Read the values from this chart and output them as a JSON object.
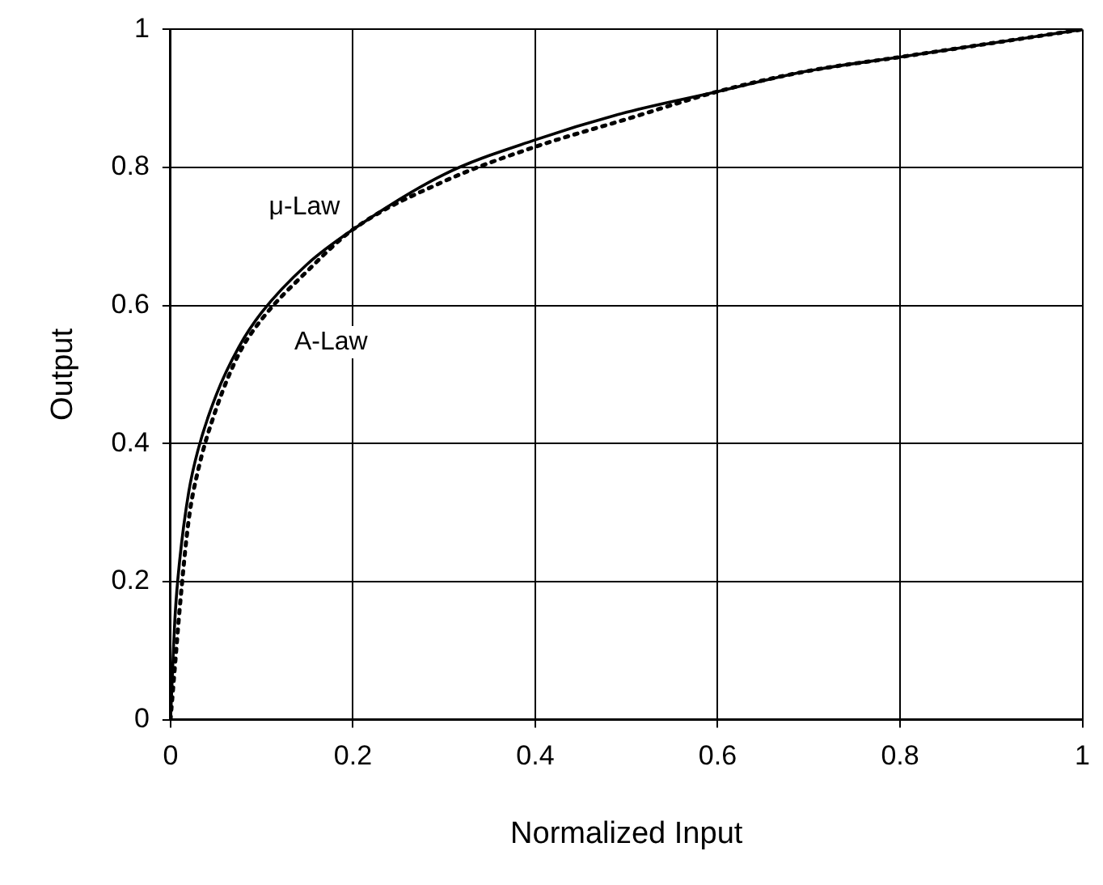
{
  "chart_data": {
    "type": "line",
    "xlabel": "Normalized Input",
    "ylabel": "Output",
    "x": [
      0,
      0.005,
      0.01,
      0.02,
      0.03,
      0.05,
      0.075,
      0.1,
      0.15,
      0.2,
      0.3,
      0.4,
      0.5,
      0.6,
      0.7,
      0.8,
      0.9,
      1
    ],
    "series": [
      {
        "name": "μ-Law",
        "color": "#000000",
        "line_style": "solid",
        "values": [
          0,
          0.15,
          0.23,
          0.33,
          0.39,
          0.47,
          0.54,
          0.59,
          0.66,
          0.71,
          0.79,
          0.84,
          0.88,
          0.91,
          0.94,
          0.96,
          0.98,
          1
        ]
      },
      {
        "name": "A-Law",
        "color": "#000000",
        "line_style": "dotted",
        "values": [
          0,
          0.08,
          0.16,
          0.29,
          0.36,
          0.45,
          0.53,
          0.58,
          0.65,
          0.71,
          0.78,
          0.83,
          0.87,
          0.91,
          0.94,
          0.96,
          0.98,
          1
        ]
      }
    ],
    "xlim": [
      0,
      1
    ],
    "ylim": [
      0,
      1
    ],
    "xticks": [
      0,
      0.2,
      0.4,
      0.6,
      0.8,
      1
    ],
    "yticks": [
      0,
      0.2,
      0.4,
      0.6,
      0.8,
      1
    ],
    "grid": true,
    "legend": false,
    "marker": "none"
  }
}
